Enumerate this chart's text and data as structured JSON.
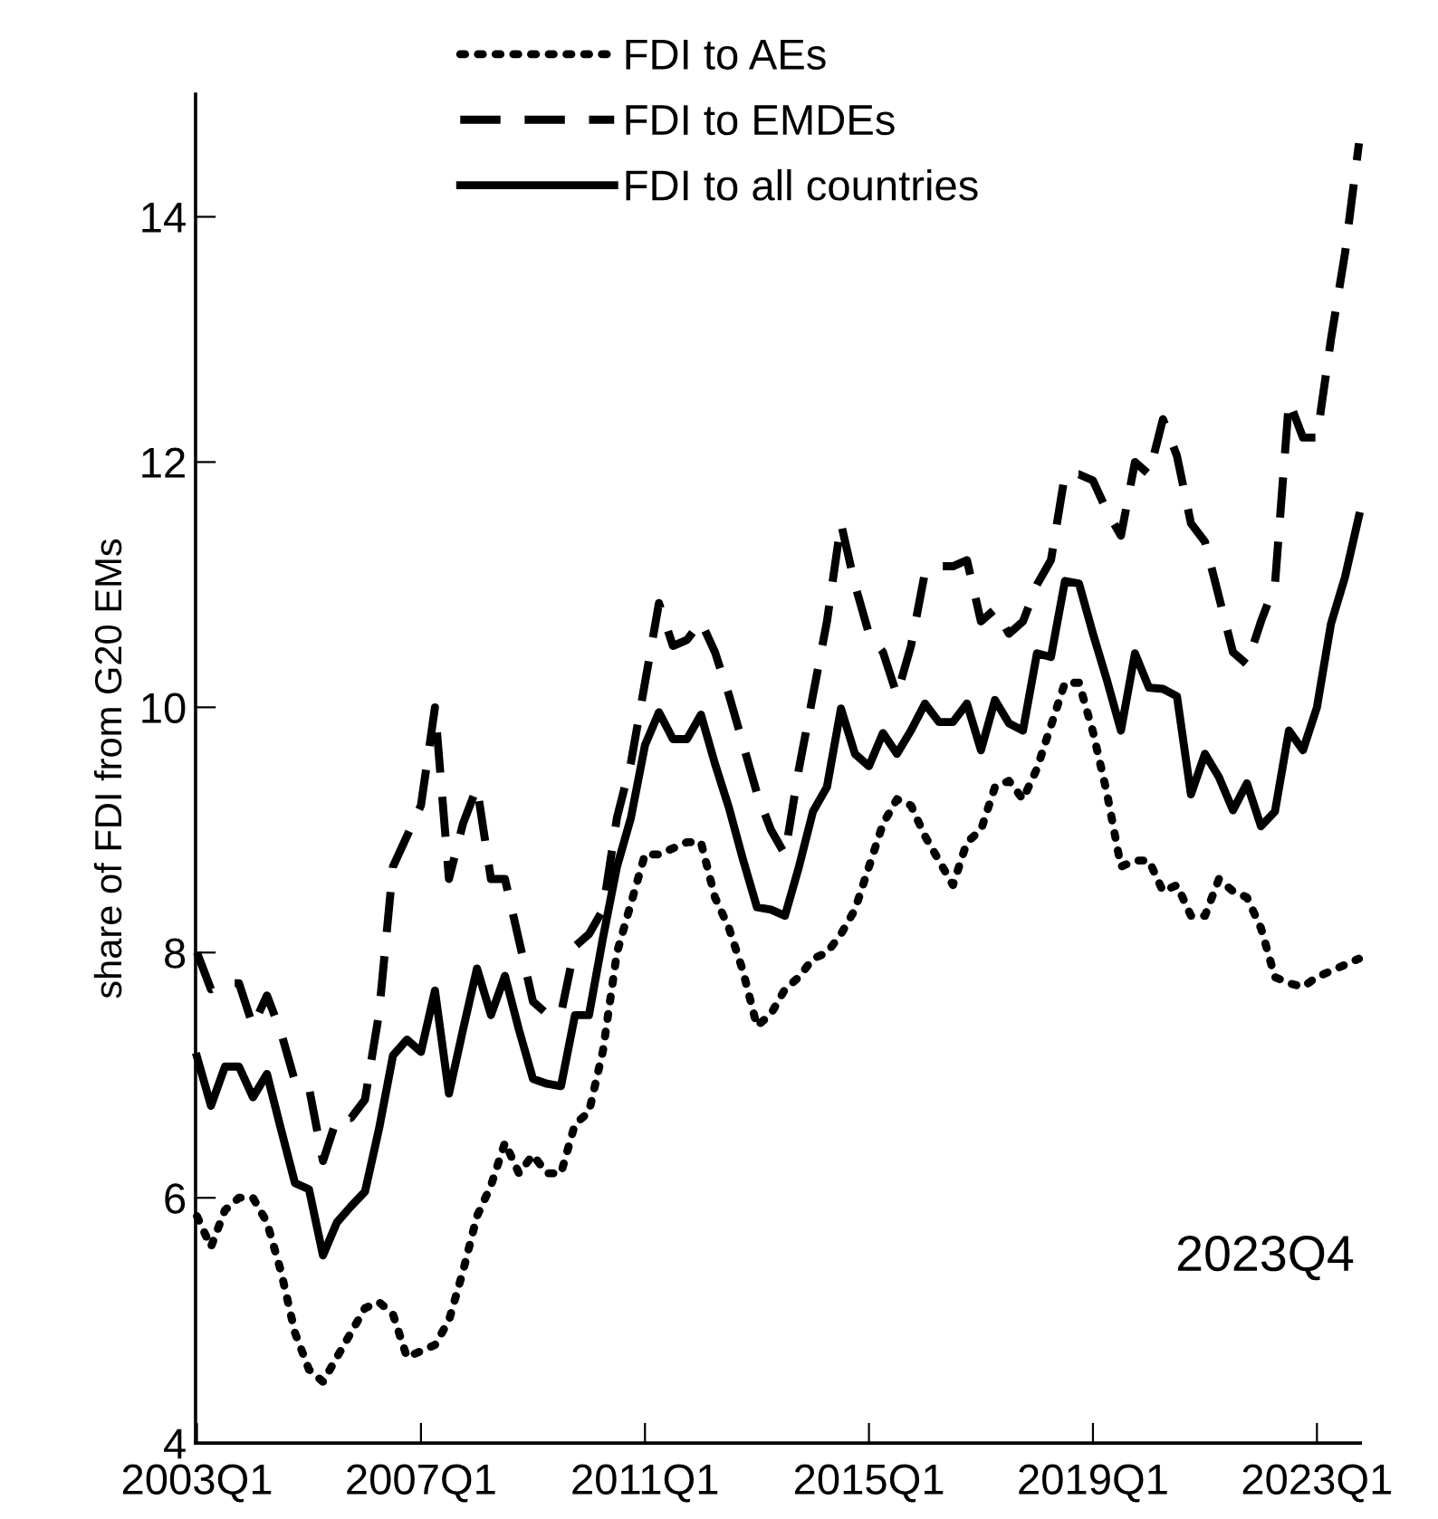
{
  "chart_data": {
    "type": "line",
    "ylabel": "share of FDI from G20 EMs",
    "categories": [
      "2003Q1",
      null,
      null,
      null,
      null,
      null,
      null,
      null,
      null,
      null,
      null,
      null,
      null,
      null,
      null,
      null,
      "2007Q1",
      null,
      null,
      null,
      null,
      null,
      null,
      null,
      null,
      null,
      null,
      null,
      null,
      null,
      null,
      null,
      "2011Q1",
      null,
      null,
      null,
      null,
      null,
      null,
      null,
      null,
      null,
      null,
      null,
      null,
      null,
      null,
      null,
      "2015Q1",
      null,
      null,
      null,
      null,
      null,
      null,
      null,
      null,
      null,
      null,
      null,
      null,
      null,
      null,
      null,
      "2019Q1",
      null,
      null,
      null,
      null,
      null,
      null,
      null,
      null,
      null,
      null,
      null,
      null,
      null,
      null,
      null,
      "2023Q1",
      null,
      null,
      null
    ],
    "series": [
      {
        "name": "FDI to AEs",
        "color": "#000000",
        "line_style": "dotted",
        "values": [
          5.85,
          5.6,
          5.9,
          6.0,
          6.0,
          5.8,
          5.4,
          4.9,
          4.6,
          4.5,
          4.7,
          4.9,
          5.1,
          5.15,
          5.05,
          4.7,
          4.75,
          4.8,
          5.0,
          5.4,
          5.85,
          6.1,
          6.45,
          6.2,
          6.35,
          6.2,
          6.2,
          6.6,
          6.7,
          7.2,
          8.0,
          8.4,
          8.8,
          8.8,
          8.85,
          8.9,
          8.9,
          8.45,
          8.2,
          7.85,
          7.4,
          7.5,
          7.7,
          7.8,
          7.95,
          8.0,
          8.15,
          8.35,
          8.7,
          9.05,
          9.25,
          9.2,
          8.95,
          8.75,
          8.55,
          8.9,
          9.0,
          9.35,
          9.4,
          9.25,
          9.5,
          9.85,
          10.2,
          10.2,
          9.8,
          9.3,
          8.7,
          8.75,
          8.75,
          8.5,
          8.55,
          8.3,
          8.3,
          8.6,
          8.5,
          8.45,
          8.2,
          7.8,
          7.75,
          7.72,
          7.8,
          7.85,
          7.9,
          7.95
        ]
      },
      {
        "name": "FDI to EMDEs",
        "color": "#000000",
        "line_style": "dashed",
        "values": [
          8.0,
          7.7,
          7.75,
          7.75,
          7.4,
          7.65,
          7.35,
          6.95,
          6.9,
          6.3,
          6.65,
          6.65,
          6.8,
          7.5,
          8.7,
          8.95,
          9.2,
          10.0,
          8.6,
          9.05,
          9.35,
          8.6,
          8.6,
          8.1,
          7.6,
          7.5,
          7.5,
          8.05,
          8.15,
          8.35,
          9.1,
          9.55,
          10.2,
          10.85,
          10.5,
          10.55,
          10.7,
          10.45,
          10.1,
          9.7,
          9.3,
          9.0,
          8.8,
          9.5,
          10.1,
          10.7,
          11.5,
          11.0,
          10.6,
          10.45,
          10.1,
          10.5,
          11.1,
          11.15,
          11.15,
          11.2,
          10.7,
          10.8,
          10.6,
          10.7,
          11.0,
          11.2,
          11.9,
          11.9,
          11.85,
          11.6,
          11.4,
          12.0,
          11.9,
          12.35,
          12.05,
          11.5,
          11.35,
          10.9,
          10.45,
          10.35,
          10.7,
          11.0,
          12.5,
          12.2,
          12.2,
          13.0,
          13.7,
          14.6
        ]
      },
      {
        "name": "FDI to all countries",
        "color": "#000000",
        "line_style": "solid",
        "values": [
          7.15,
          6.75,
          7.07,
          7.07,
          6.82,
          7.01,
          6.56,
          6.12,
          6.07,
          5.53,
          5.8,
          5.93,
          6.05,
          6.56,
          7.16,
          7.29,
          7.19,
          7.69,
          6.85,
          7.37,
          7.87,
          7.49,
          7.81,
          7.37,
          6.97,
          6.93,
          6.91,
          7.49,
          7.49,
          8.12,
          8.7,
          9.1,
          9.69,
          9.96,
          9.74,
          9.74,
          9.94,
          9.54,
          9.18,
          8.76,
          8.37,
          8.35,
          8.3,
          8.7,
          9.15,
          9.35,
          9.99,
          9.62,
          9.52,
          9.79,
          9.62,
          9.81,
          10.03,
          9.88,
          9.88,
          10.03,
          9.65,
          10.06,
          9.87,
          9.81,
          10.44,
          10.41,
          11.03,
          11.01,
          10.6,
          10.22,
          9.81,
          10.44,
          10.16,
          10.15,
          10.09,
          9.29,
          9.62,
          9.43,
          9.16,
          9.38,
          9.03,
          9.15,
          9.81,
          9.65,
          10.0,
          10.68,
          11.06,
          11.56
        ]
      }
    ],
    "ylim": [
      4,
      15
    ],
    "yticks": [
      4,
      6,
      8,
      10,
      12,
      14
    ],
    "grid": false,
    "legend": "top",
    "marker": "none",
    "annotations": [
      "2023Q4"
    ]
  }
}
